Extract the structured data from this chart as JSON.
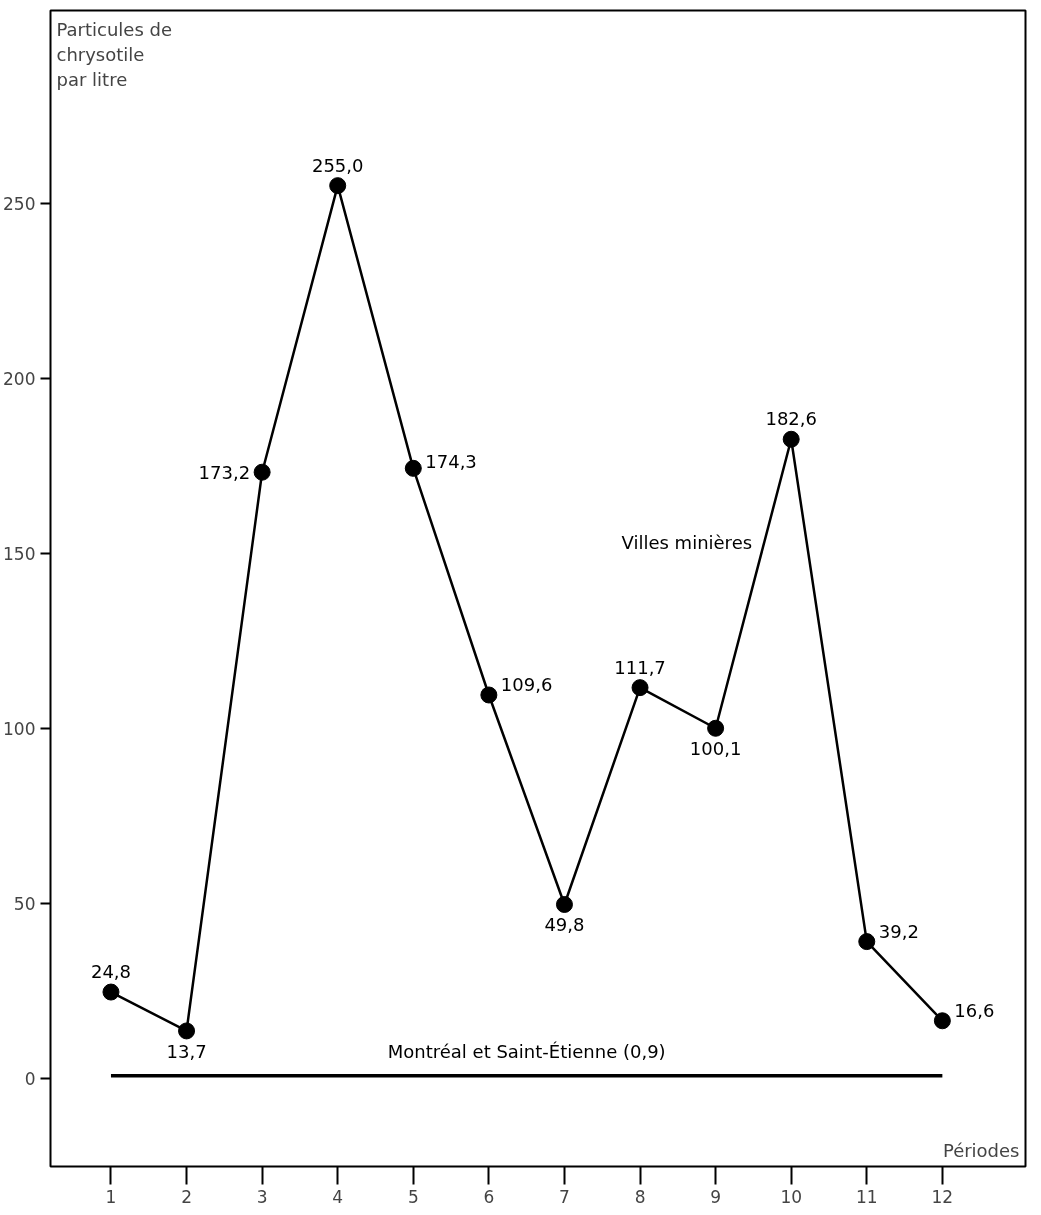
{
  "chart_data": {
    "type": "line",
    "ylabel": "Particules de\nchrysotile\npar litre",
    "xlabel": "Périodes",
    "x": [
      1,
      2,
      3,
      4,
      5,
      6,
      7,
      8,
      9,
      10,
      11,
      12
    ],
    "xlim": [
      0.2,
      13.1
    ],
    "xticks": [
      1,
      2,
      3,
      4,
      5,
      6,
      7,
      8,
      9,
      10,
      11,
      12
    ],
    "ylim": [
      -25,
      305
    ],
    "yticks": [
      0,
      50,
      100,
      150,
      200,
      250
    ],
    "grid": false,
    "series": [
      {
        "name": "Villes minières",
        "color": "#000000",
        "marker": "circle",
        "values": [
          24.8,
          13.7,
          173.2,
          255.0,
          174.3,
          109.6,
          49.8,
          111.7,
          100.1,
          182.6,
          39.2,
          16.6
        ],
        "value_labels": [
          "24,8",
          "13,7",
          "173,2",
          "255,0",
          "174,3",
          "109,6",
          "49,8",
          "111,7",
          "100,1",
          "182,6",
          "39,2",
          "16,6"
        ]
      },
      {
        "name": "Montréal et Saint-Étienne (0,9)",
        "color": "#000000",
        "marker": "none",
        "values": [
          0.9,
          0.9,
          0.9,
          0.9,
          0.9,
          0.9,
          0.9,
          0.9,
          0.9,
          0.9,
          0.9,
          0.9
        ]
      }
    ]
  }
}
